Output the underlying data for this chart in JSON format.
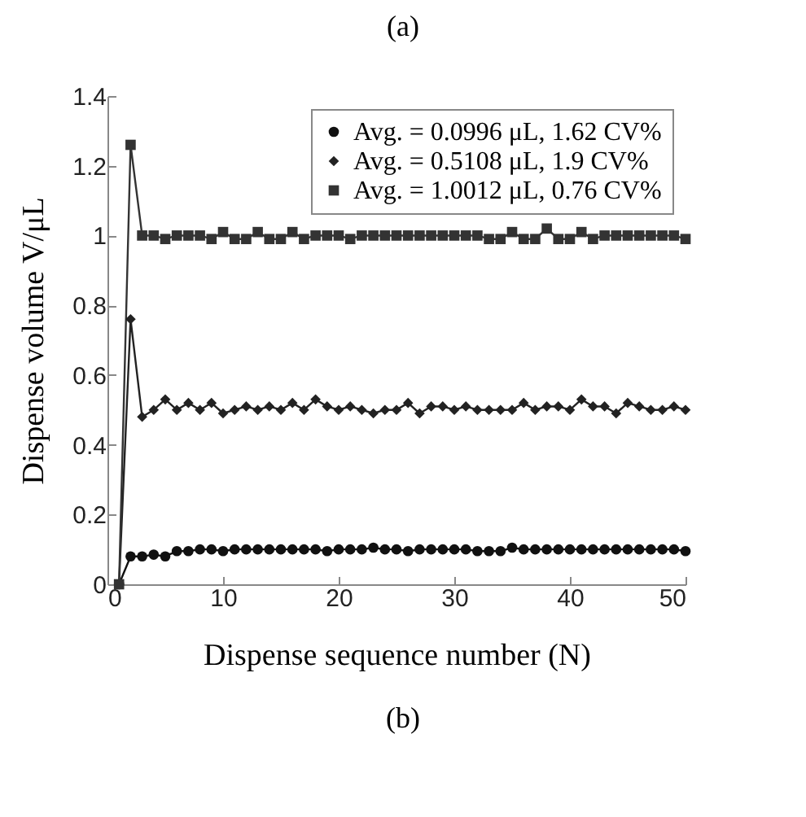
{
  "chart_data": {
    "type": "line",
    "title": "(a)",
    "annotations": [
      "(b)"
    ],
    "xlabel": "Dispense sequence number (N)",
    "ylabel": "Dispense volume V/μL",
    "x": [
      1,
      2,
      3,
      4,
      5,
      6,
      7,
      8,
      9,
      10,
      11,
      12,
      13,
      14,
      15,
      16,
      17,
      18,
      19,
      20,
      21,
      22,
      23,
      24,
      25,
      26,
      27,
      28,
      29,
      30,
      31,
      32,
      33,
      34,
      35,
      36,
      37,
      38,
      39,
      40,
      41,
      42,
      43,
      44,
      45,
      46,
      47,
      48,
      49,
      50
    ],
    "series": [
      {
        "name": "Avg. = 0.0996 μL, 1.62 CV%",
        "color": "#111111",
        "marker": "circle",
        "values": [
          0,
          0.08,
          0.08,
          0.085,
          0.08,
          0.095,
          0.095,
          0.1,
          0.1,
          0.095,
          0.1,
          0.1,
          0.1,
          0.1,
          0.1,
          0.1,
          0.1,
          0.1,
          0.095,
          0.1,
          0.1,
          0.1,
          0.105,
          0.1,
          0.1,
          0.095,
          0.1,
          0.1,
          0.1,
          0.1,
          0.1,
          0.095,
          0.095,
          0.095,
          0.105,
          0.1,
          0.1,
          0.1,
          0.1,
          0.1,
          0.1,
          0.1,
          0.1,
          0.1,
          0.1,
          0.1,
          0.1,
          0.1,
          0.1,
          0.095
        ]
      },
      {
        "name": "Avg. = 0.5108 μL, 1.9 CV%",
        "color": "#222222",
        "marker": "diamond",
        "values": [
          0,
          0.76,
          0.48,
          0.5,
          0.53,
          0.5,
          0.52,
          0.5,
          0.52,
          0.49,
          0.5,
          0.51,
          0.5,
          0.51,
          0.5,
          0.52,
          0.5,
          0.53,
          0.51,
          0.5,
          0.51,
          0.5,
          0.49,
          0.5,
          0.5,
          0.52,
          0.49,
          0.51,
          0.51,
          0.5,
          0.51,
          0.5,
          0.5,
          0.5,
          0.5,
          0.52,
          0.5,
          0.51,
          0.51,
          0.5,
          0.53,
          0.51,
          0.51,
          0.49,
          0.52,
          0.51,
          0.5,
          0.5,
          0.51,
          0.5
        ]
      },
      {
        "name": "Avg. = 1.0012 μL, 0.76 CV%",
        "color": "#333333",
        "marker": "square",
        "values": [
          0,
          1.26,
          1.0,
          1.0,
          0.99,
          1.0,
          1.0,
          1.0,
          0.99,
          1.01,
          0.99,
          0.99,
          1.01,
          0.99,
          0.99,
          1.01,
          0.99,
          1.0,
          1.0,
          1.0,
          0.99,
          1.0,
          1.0,
          1.0,
          1.0,
          1.0,
          1.0,
          1.0,
          1.0,
          1.0,
          1.0,
          1.0,
          0.99,
          0.99,
          1.01,
          0.99,
          0.99,
          1.02,
          0.99,
          0.99,
          1.01,
          0.99,
          1.0,
          1.0,
          1.0,
          1.0,
          1.0,
          1.0,
          1.0,
          0.99
        ]
      }
    ],
    "xlim": [
      0,
      50
    ],
    "xticks": [
      0,
      10,
      20,
      30,
      40,
      50
    ],
    "ylim": [
      0,
      1.4
    ],
    "yticks": [
      0,
      0.2,
      0.4,
      0.6,
      0.8,
      1,
      1.2,
      1.4
    ],
    "legend": "top right",
    "grid": false,
    "line_style": "solid"
  }
}
